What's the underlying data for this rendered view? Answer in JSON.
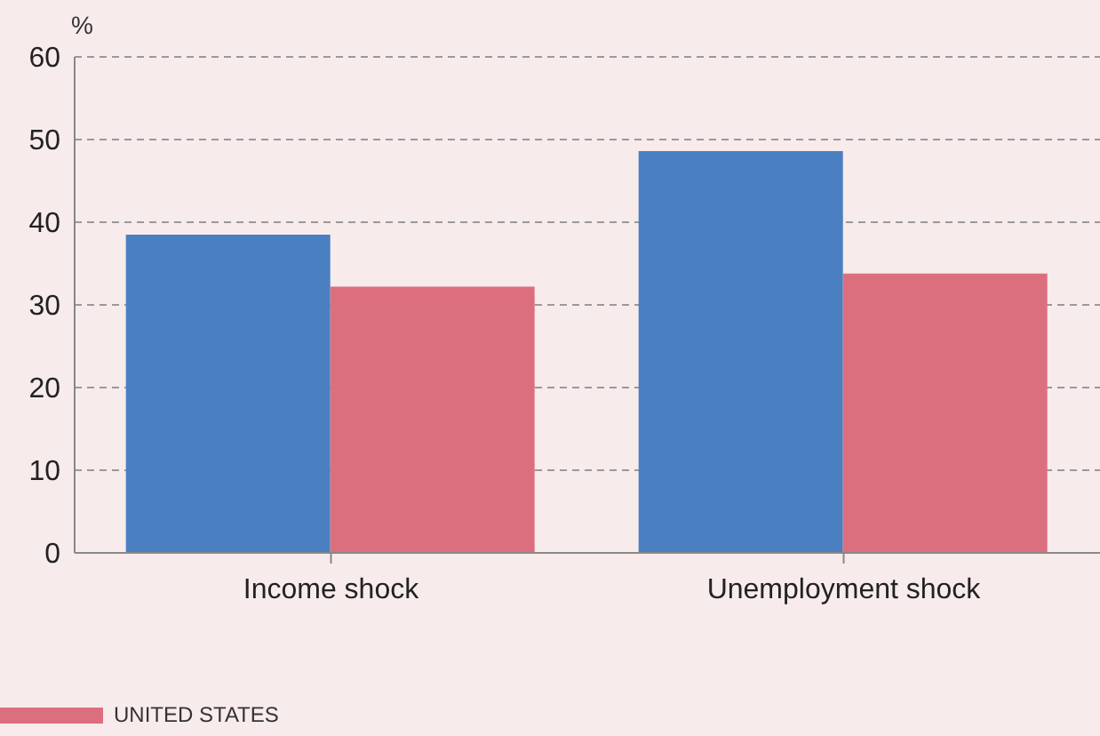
{
  "chart_data": {
    "type": "bar",
    "ylabel": "%",
    "categories": [
      "Income shock",
      "Unemployment shock"
    ],
    "series": [
      {
        "color": "#4a80c2",
        "values": [
          38.5,
          48.6
        ]
      },
      {
        "name": "UNITED STATES",
        "color": "#dc6f7e",
        "values": [
          32.2,
          33.8
        ]
      }
    ],
    "ylim": [
      0,
      60
    ],
    "yticks": [
      0,
      10,
      20,
      30,
      40,
      50,
      60
    ],
    "grid": "y",
    "legend": "bottom left"
  }
}
